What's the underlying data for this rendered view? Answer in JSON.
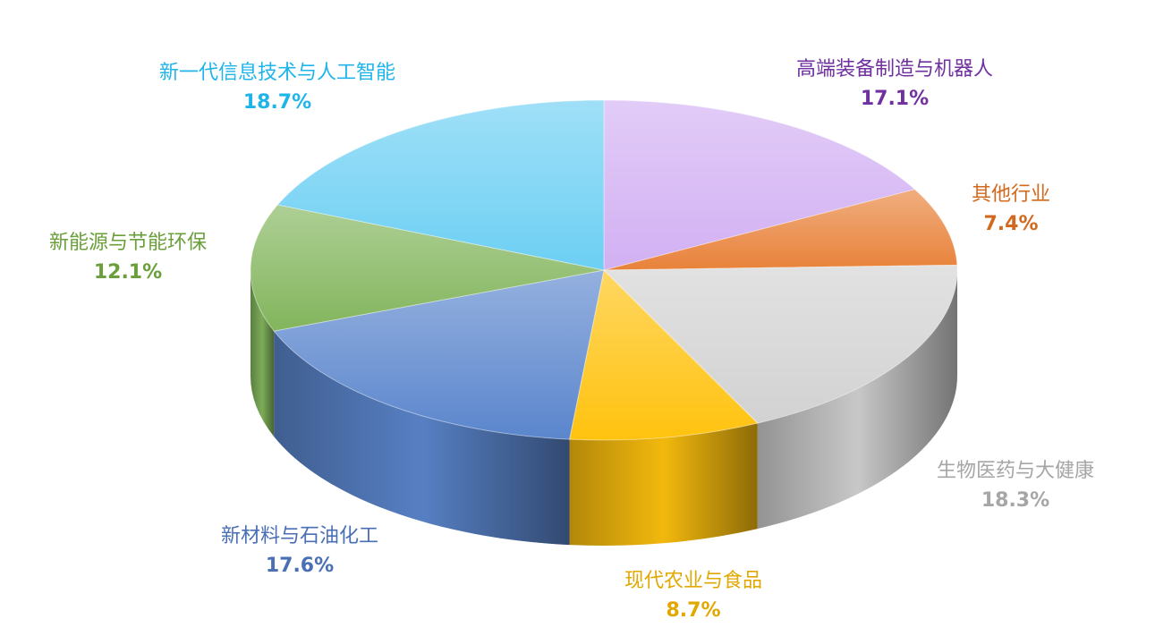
{
  "chart_data": {
    "type": "pie",
    "categories": [
      "高端装备制造与机器人",
      "其他行业",
      "生物医药与大健康",
      "现代农业与食品",
      "新材料与石油化工",
      "新能源与节能环保",
      "新一代信息技术与人工智能"
    ],
    "values": [
      17.1,
      7.4,
      18.3,
      8.7,
      17.6,
      12.1,
      18.7
    ],
    "value_labels": [
      "17.1%",
      "7.4%",
      "18.3%",
      "8.7%",
      "17.6%",
      "12.1%",
      "18.7%"
    ],
    "colors": [
      "#d2b0f3",
      "#e8823a",
      "#d2d2d2",
      "#ffc20e",
      "#5b86cd",
      "#82b55c",
      "#6ccff3"
    ],
    "label_colors": [
      "#7030a0",
      "#d2691f",
      "#a6a6a6",
      "#e0a800",
      "#4a6fb5",
      "#6a9f3a",
      "#1fb4ea"
    ]
  }
}
